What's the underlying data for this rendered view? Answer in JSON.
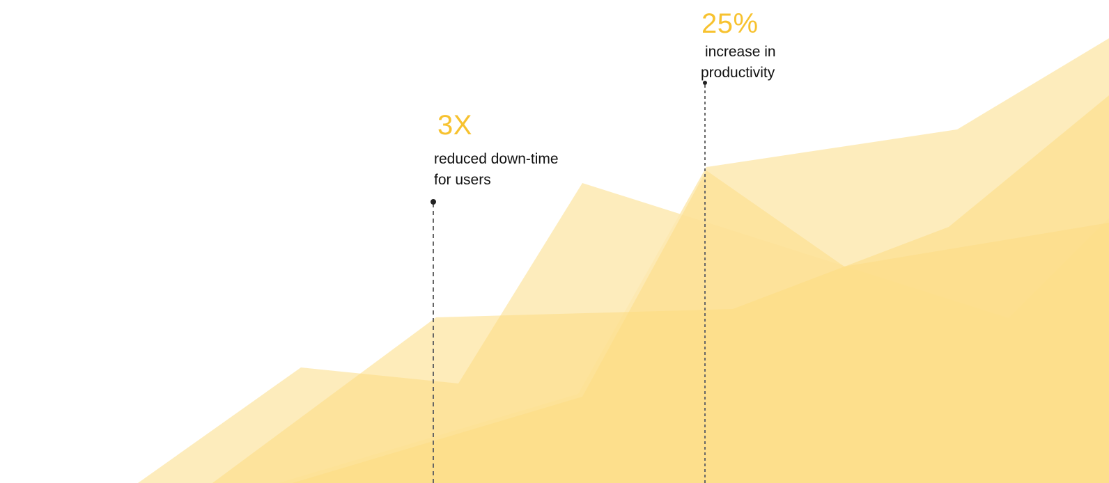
{
  "colors": {
    "accent": "#f7c22f",
    "area_light": "#fde9b0",
    "area_mid": "#fddc82",
    "marker": "#222222",
    "guide_line": "#666666"
  },
  "stats": [
    {
      "value": "3X",
      "description_lines": [
        "reduced down-time",
        "for users"
      ]
    },
    {
      "value": "25%",
      "description_lines": [
        "increase in",
        "productivity"
      ]
    }
  ]
}
